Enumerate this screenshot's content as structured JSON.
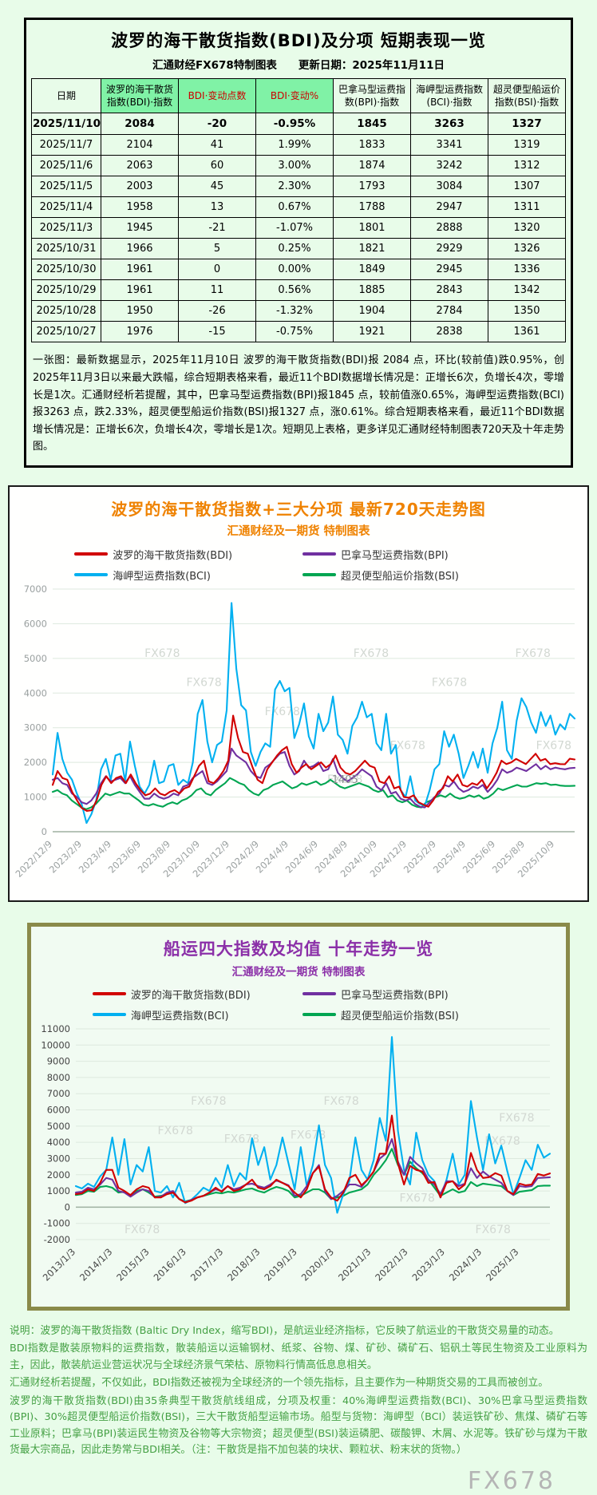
{
  "page": {
    "watermark": "FX678"
  },
  "top_panel": {
    "title": "波罗的海干散货指数(BDI)及分项  短期表现一览",
    "subtitle": "汇通财经FX678特制图表　　更新日期：2025年11月11日",
    "table": {
      "headers": [
        "日期",
        "波罗的海干散货\n指数(BDI)·指数",
        "BDI·变动点数",
        "BDI·变动%",
        "巴拿马型运费指\n数(BPI)·指数",
        "海岬型运费指数\n(BCI)·指数",
        "超灵便型船运价\n指数(BSI)·指数"
      ],
      "rows": [
        [
          "2025/11/10",
          "2084",
          "-20",
          "-0.95%",
          "1845",
          "3263",
          "1327"
        ],
        [
          "2025/11/7",
          "2104",
          "41",
          "1.99%",
          "1833",
          "3341",
          "1319"
        ],
        [
          "2025/11/6",
          "2063",
          "60",
          "3.00%",
          "1874",
          "3242",
          "1312"
        ],
        [
          "2025/11/5",
          "2003",
          "45",
          "2.30%",
          "1793",
          "3084",
          "1307"
        ],
        [
          "2025/11/4",
          "1958",
          "13",
          "0.67%",
          "1788",
          "2947",
          "1311"
        ],
        [
          "2025/11/3",
          "1945",
          "-21",
          "-1.07%",
          "1801",
          "2888",
          "1320"
        ],
        [
          "2025/10/31",
          "1966",
          "5",
          "0.25%",
          "1821",
          "2929",
          "1326"
        ],
        [
          "2025/10/30",
          "1961",
          "0",
          "0.00%",
          "1849",
          "2945",
          "1336"
        ],
        [
          "2025/10/29",
          "1961",
          "11",
          "0.56%",
          "1885",
          "2843",
          "1342"
        ],
        [
          "2025/10/28",
          "1950",
          "-26",
          "-1.32%",
          "1904",
          "2784",
          "1350"
        ],
        [
          "2025/10/27",
          "1976",
          "-15",
          "-0.75%",
          "1921",
          "2838",
          "1361"
        ]
      ]
    },
    "summary": "一张图：最新数据显示，2025年11月10日 波罗的海干散货指数(BDI)报 2084 点，环比(较前值)跌0.95%，创2025年11月3日以来最大跌幅，综合短期表格来看，最近11个BDI数据增长情况是：正增长6次，负增长4次，零增长是1次。汇通财经析若提醒，其中，巴拿马型运费指数(BPI)报1845 点，较前值涨0.65%，海岬型运费指数(BCI)报3263 点，跌2.33%，超灵便型船运价指数(BSI)报1327 点，涨0.61%。综合短期表格来看，最近11个BDI数据增长情况是：正增长6次，负增长4次，零增长是1次。短期见上表格，更多详见汇通财经特制图表720天及十年走势图。"
  },
  "chart_data": [
    {
      "type": "line",
      "title": "波罗的海干散货指数+三大分项  最新720天走势图",
      "subtitle": "汇通财经及一期货  特制图表",
      "ylim": [
        0,
        7000
      ],
      "ytick": 1000,
      "label_span": 0.962,
      "axis_color": "#9aa0a0",
      "grid": true,
      "legend_position": "top",
      "xlabels": [
        "2022/12/9",
        "2023/2/9",
        "2023/4/9",
        "2023/6/9",
        "2023/8/9",
        "2023/10/9",
        "2023/12/9",
        "2024/2/9",
        "2024/4/9",
        "2024/6/9",
        "2024/8/9",
        "2024/10/9",
        "2024/12/9",
        "2025/2/9",
        "2025/4/9",
        "2025/6/9",
        "2025/8/9",
        "2025/10/9"
      ],
      "watermarks": [
        [
          0.21,
          0.28
        ],
        [
          0.29,
          0.4
        ],
        [
          0.44,
          0.52
        ],
        [
          0.61,
          0.28
        ],
        [
          0.76,
          0.4
        ],
        [
          0.68,
          0.66
        ],
        [
          0.92,
          0.28
        ],
        [
          0.96,
          0.66
        ],
        [
          0.56,
          0.8
        ]
      ],
      "annotations": [
        {
          "x": 0.56,
          "v": 1405,
          "text": "1405"
        }
      ],
      "series": [
        {
          "name": "波罗的海干散货指数(BDI)",
          "color": "#d10000",
          "values": [
            1350,
            1750,
            1550,
            1500,
            1150,
            900,
            680,
            600,
            620,
            900,
            1350,
            1600,
            1400,
            1550,
            1600,
            1400,
            1650,
            1400,
            1200,
            1050,
            1100,
            1250,
            1100,
            1050,
            1150,
            1200,
            1100,
            1250,
            1300,
            1600,
            1900,
            2050,
            1450,
            1400,
            1550,
            1750,
            2050,
            3350,
            2700,
            2300,
            2250,
            1850,
            1500,
            1400,
            1800,
            2000,
            2200,
            2350,
            2450,
            1950,
            1700,
            1850,
            1950,
            1800,
            1900,
            2000,
            1850,
            1950,
            2200,
            1850,
            1700,
            1650,
            1750,
            1900,
            2050,
            1900,
            1850,
            1450,
            1400,
            1600,
            1250,
            1300,
            1000,
            980,
            1050,
            850,
            780,
            720,
            900,
            1150,
            1250,
            1600,
            1450,
            1650,
            1350,
            1300,
            1400,
            1350,
            1500,
            1250,
            1450,
            1700,
            2050,
            1950,
            2000,
            2100,
            2025,
            1950,
            2100,
            2250,
            2050,
            2100,
            1950,
            1976,
            1950,
            1945,
            2104,
            2084
          ]
        },
        {
          "name": "巴拿马型运费指数(BPI)",
          "color": "#7030a0",
          "values": [
            1500,
            1550,
            1400,
            1350,
            1100,
            1000,
            850,
            800,
            900,
            1100,
            1400,
            1600,
            1450,
            1500,
            1550,
            1400,
            1600,
            1350,
            1150,
            950,
            950,
            1100,
            1000,
            950,
            1000,
            1100,
            1050,
            1300,
            1350,
            1550,
            1650,
            1750,
            1400,
            1350,
            1450,
            1600,
            1750,
            2400,
            2200,
            2100,
            2000,
            1750,
            1600,
            1550,
            1850,
            1950,
            2100,
            2250,
            2300,
            1900,
            1650,
            1750,
            2050,
            1850,
            1900,
            2000,
            1750,
            1800,
            2100,
            1700,
            1550,
            1450,
            1550,
            1650,
            1800,
            1700,
            1600,
            1300,
            1200,
            1400,
            1100,
            1150,
            950,
            900,
            950,
            800,
            720,
            700,
            850,
            1000,
            1100,
            1350,
            1300,
            1450,
            1250,
            1150,
            1200,
            1300,
            1250,
            1350,
            1150,
            1300,
            1500,
            1800,
            1700,
            1750,
            1850,
            1800,
            1750,
            1850,
            1950,
            1800,
            1900,
            1800,
            1850,
            1820,
            1801,
            1833,
            1845
          ]
        },
        {
          "name": "海岬型运费指数(BCI)",
          "color": "#00b0f0",
          "values": [
            1650,
            2850,
            2100,
            1700,
            1500,
            1100,
            800,
            250,
            500,
            900,
            1800,
            2100,
            1500,
            2200,
            2250,
            1450,
            2600,
            1900,
            1300,
            1100,
            1350,
            2050,
            1400,
            1450,
            1900,
            1950,
            1350,
            1500,
            1400,
            2000,
            3400,
            3800,
            2600,
            2000,
            2500,
            2600,
            3500,
            6600,
            4700,
            3650,
            3500,
            2300,
            1900,
            2300,
            2550,
            2450,
            4100,
            4350,
            4050,
            4150,
            2700,
            3100,
            3700,
            2750,
            2400,
            3400,
            2900,
            3150,
            3900,
            2800,
            2650,
            2250,
            3050,
            3300,
            3750,
            3300,
            3400,
            2550,
            2350,
            3400,
            2250,
            2500,
            1200,
            1000,
            1600,
            900,
            800,
            750,
            1200,
            1800,
            1950,
            2900,
            2450,
            2800,
            2250,
            1550,
            1900,
            2300,
            1850,
            2400,
            1700,
            2550,
            3000,
            3750,
            2350,
            2100,
            3200,
            3850,
            3600,
            3150,
            2850,
            3450,
            3050,
            3350,
            2800,
            3100,
            2950,
            3400,
            3263
          ]
        },
        {
          "name": "超灵便型船运价指数(BSI)",
          "color": "#00a551",
          "values": [
            1150,
            1200,
            1100,
            1050,
            900,
            800,
            700,
            650,
            700,
            800,
            950,
            1100,
            1050,
            1100,
            1150,
            1100,
            1100,
            1000,
            900,
            780,
            750,
            800,
            750,
            720,
            800,
            850,
            800,
            900,
            950,
            1050,
            1200,
            1250,
            1100,
            1050,
            1200,
            1300,
            1400,
            1550,
            1480,
            1400,
            1350,
            1200,
            1100,
            1050,
            1200,
            1250,
            1350,
            1400,
            1450,
            1350,
            1250,
            1300,
            1400,
            1350,
            1400,
            1450,
            1350,
            1400,
            1500,
            1400,
            1300,
            1250,
            1300,
            1350,
            1400,
            1350,
            1300,
            1200,
            1150,
            1200,
            1000,
            1050,
            900,
            850,
            900,
            780,
            720,
            700,
            850,
            900,
            1000,
            1050,
            1000,
            1100,
            1000,
            950,
            980,
            1050,
            1000,
            1050,
            950,
            1000,
            1100,
            1250,
            1200,
            1250,
            1300,
            1350,
            1300,
            1300,
            1350,
            1400,
            1380,
            1400,
            1350,
            1361,
            1330,
            1320,
            1319,
            1327
          ]
        }
      ]
    },
    {
      "type": "line",
      "title": "船运四大指数及均值 十年走势一览",
      "subtitle": "汇通财经及一期货 特制图表",
      "ylim": [
        -2000,
        11000
      ],
      "ytick": 1000,
      "label_span": 0.935,
      "axis_color": "#444444",
      "grid": true,
      "legend_position": "top",
      "xlabels": [
        "2013/1/3",
        "2014/1/3",
        "2015/1/3",
        "2016/1/3",
        "2017/1/3",
        "2018/1/3",
        "2019/1/3",
        "2020/1/3",
        "2021/1/3",
        "2022/1/3",
        "2023/1/3",
        "2024/1/3",
        "2025/1/3"
      ],
      "watermarks": [
        [
          0.28,
          0.36
        ],
        [
          0.21,
          0.5
        ],
        [
          0.35,
          0.54
        ],
        [
          0.49,
          0.52
        ],
        [
          0.56,
          0.36
        ],
        [
          0.72,
          0.82
        ],
        [
          0.93,
          0.44
        ],
        [
          0.9,
          0.55
        ],
        [
          0.14,
          0.97
        ],
        [
          0.88,
          0.97
        ]
      ],
      "annotations": [],
      "series": [
        {
          "name": "波罗的海干散货指数(BDI)",
          "color": "#d10000",
          "values": [
            800,
            850,
            1100,
            1000,
            1500,
            2300,
            2300,
            1200,
            1000,
            750,
            1100,
            1300,
            1200,
            600,
            600,
            800,
            900,
            500,
            290,
            400,
            600,
            700,
            900,
            1200,
            950,
            1300,
            1000,
            1100,
            1400,
            1700,
            1200,
            1100,
            1300,
            1700,
            1500,
            1300,
            900,
            600,
            1100,
            2100,
            2500,
            1100,
            600,
            400,
            900,
            1800,
            2000,
            1350,
            1700,
            2200,
            3300,
            3300,
            5650,
            2700,
            1400,
            2550,
            2300,
            2200,
            1500,
            1550,
            600,
            1500,
            1600,
            1100,
            1400,
            3350,
            2300,
            1800,
            1850,
            2100,
            1950,
            1000,
            800,
            1450,
            1350,
            1400,
            2050,
            1950,
            2084
          ]
        },
        {
          "name": "巴拿马型运费指数(BPI)",
          "color": "#7030a0",
          "values": [
            900,
            950,
            1200,
            1100,
            1400,
            1800,
            1700,
            1000,
            900,
            650,
            900,
            1100,
            1000,
            600,
            650,
            900,
            1000,
            500,
            300,
            450,
            600,
            700,
            900,
            1100,
            1000,
            1300,
            1100,
            1200,
            1400,
            1450,
            1300,
            1200,
            1400,
            1650,
            1500,
            1350,
            700,
            800,
            1300,
            2100,
            2600,
            1000,
            500,
            700,
            1000,
            1400,
            1400,
            1250,
            1700,
            2200,
            3000,
            3300,
            4200,
            2800,
            2000,
            3100,
            2700,
            2400,
            1700,
            1400,
            800,
            1600,
            1600,
            1300,
            1450,
            2400,
            1800,
            2200,
            1900,
            1700,
            1500,
            1000,
            750,
            1300,
            1250,
            1300,
            1800,
            1820,
            1845
          ]
        },
        {
          "name": "海岬型运费指数(BCI)",
          "color": "#00b0f0",
          "values": [
            1300,
            1150,
            1450,
            1250,
            1900,
            2300,
            4300,
            2000,
            4200,
            1400,
            2600,
            2200,
            3700,
            1000,
            900,
            1300,
            600,
            1500,
            250,
            450,
            800,
            1200,
            1000,
            1800,
            1200,
            2600,
            1300,
            2100,
            1700,
            4250,
            2600,
            3700,
            1700,
            2600,
            4300,
            2700,
            1100,
            3700,
            1300,
            2600,
            5050,
            2600,
            1800,
            -350,
            800,
            1600,
            4300,
            2300,
            1700,
            2900,
            5500,
            4100,
            10500,
            4700,
            2300,
            1400,
            4600,
            2900,
            2000,
            1600,
            600,
            1700,
            3300,
            1400,
            2000,
            6550,
            4300,
            2300,
            4500,
            2700,
            3800,
            2200,
            800,
            1800,
            2900,
            2300,
            3850,
            3050,
            3300
          ]
        },
        {
          "name": "超灵便型船运价指数(BSI)",
          "color": "#00a551",
          "values": [
            750,
            800,
            1000,
            950,
            1250,
            1300,
            1200,
            900,
            950,
            700,
            1000,
            1100,
            900,
            650,
            700,
            800,
            900,
            500,
            350,
            450,
            600,
            700,
            800,
            900,
            850,
            950,
            900,
            1000,
            1100,
            1150,
            1000,
            900,
            1100,
            1250,
            1150,
            1000,
            600,
            700,
            900,
            1100,
            1100,
            900,
            500,
            600,
            700,
            900,
            1000,
            1100,
            1400,
            2000,
            2400,
            2900,
            3600,
            2600,
            2000,
            2800,
            2400,
            2100,
            1700,
            1200,
            700,
            900,
            1100,
            900,
            1000,
            1550,
            1300,
            1450,
            1400,
            1350,
            1300,
            1000,
            750,
            950,
            1000,
            1050,
            1300,
            1330,
            1327
          ]
        }
      ]
    }
  ],
  "footer": {
    "lines": [
      "说明：波罗的海干散货指数 (Baltic Dry Index，缩写BDI)，是航运业经济指标，它反映了航运业的干散货交易量的动态。",
      "BDI指数是散装原物料的运费指数，散装船运以运输钢材、纸浆、谷物、煤、矿砂、磷矿石、铝矾土等民生物资及工业原料为主，因此，散装航运业营运状况与全球经济景气荣枯、原物料行情高低息息相关。",
      "汇通财经析若提醒，不仅如此，BDI指数还被视为全球经济的一个领先指标，且主要作为一种期货交易的工具而被创立。",
      "波罗的海干散货指数(BDI)由35条典型干散货航线组成，分项及权重：40%海岬型运费指数(BCI)、30%巴拿马型运费指数(BPI)、30%超灵便型船运价指数(BSI)，三大干散货船型运输市场。船型与货物：海岬型（BCI）装运铁矿砂、焦煤、磷矿石等工业原料；巴拿马(BPI)装运民生物资及谷物等大宗物资；超灵便型(BSI)装运磷肥、碳酸钾、木屑、水泥等。铁矿砂与煤为干散货最大宗商品，因此走势常与BDI相关。（注：干散货是指不加包装的块状、颗粒状、粉末状的货物。）"
    ]
  }
}
